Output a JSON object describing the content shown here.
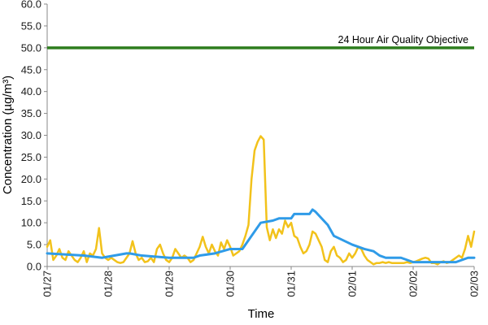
{
  "chart_data": {
    "type": "line",
    "title": "",
    "xlabel": "Time",
    "ylabel": "Concentration (µg/m³)",
    "ylim": [
      0,
      60
    ],
    "xlim": [
      0,
      7
    ],
    "grid": false,
    "y_ticks": [
      "0.0",
      "5.0",
      "10.0",
      "15.0",
      "20.0",
      "25.0",
      "30.0",
      "35.0",
      "40.0",
      "45.0",
      "50.0",
      "55.0",
      "60.0"
    ],
    "x_ticks": [
      {
        "x": 0,
        "label": "01/27"
      },
      {
        "x": 1,
        "label": "01/28"
      },
      {
        "x": 2,
        "label": "01/29"
      },
      {
        "x": 3,
        "label": "01/30"
      },
      {
        "x": 4,
        "label": "01/31"
      },
      {
        "x": 5,
        "label": "02/01"
      },
      {
        "x": 6,
        "label": "02/02"
      },
      {
        "x": 7,
        "label": "02/03"
      }
    ],
    "reference_lines": [
      {
        "y": 50.0,
        "label": "24 Hour Air Quality Objective",
        "color": "#2e7d1e"
      }
    ],
    "series": [
      {
        "color": "#f2c21b",
        "style": "hourly",
        "x": [
          0,
          0.05,
          0.1,
          0.15,
          0.2,
          0.25,
          0.3,
          0.35,
          0.4,
          0.45,
          0.5,
          0.55,
          0.6,
          0.65,
          0.7,
          0.75,
          0.8,
          0.85,
          0.9,
          0.95,
          1.0,
          1.05,
          1.1,
          1.15,
          1.2,
          1.25,
          1.3,
          1.35,
          1.4,
          1.45,
          1.5,
          1.55,
          1.6,
          1.65,
          1.7,
          1.75,
          1.8,
          1.85,
          1.9,
          1.95,
          2.0,
          2.05,
          2.1,
          2.15,
          2.2,
          2.25,
          2.3,
          2.35,
          2.4,
          2.45,
          2.5,
          2.55,
          2.6,
          2.65,
          2.7,
          2.75,
          2.8,
          2.85,
          2.9,
          2.95,
          3.0,
          3.05,
          3.1,
          3.15,
          3.2,
          3.25,
          3.3,
          3.35,
          3.4,
          3.45,
          3.5,
          3.55,
          3.6,
          3.65,
          3.7,
          3.75,
          3.8,
          3.85,
          3.9,
          3.95,
          4.0,
          4.05,
          4.1,
          4.15,
          4.2,
          4.25,
          4.3,
          4.35,
          4.4,
          4.45,
          4.5,
          4.55,
          4.6,
          4.65,
          4.7,
          4.75,
          4.8,
          4.85,
          4.9,
          4.95,
          5.0,
          5.05,
          5.1,
          5.15,
          5.2,
          5.25,
          5.3,
          5.35,
          5.4,
          5.45,
          5.5,
          5.55,
          5.6,
          5.65,
          5.7,
          5.75,
          5.8,
          5.85,
          5.9,
          5.95,
          6.0,
          6.05,
          6.1,
          6.15,
          6.2,
          6.25,
          6.3,
          6.35,
          6.4,
          6.45,
          6.5,
          6.55,
          6.6,
          6.65,
          6.7,
          6.75,
          6.8,
          6.85,
          6.9,
          6.95,
          7.0
        ],
        "y": [
          4.5,
          6.0,
          1.5,
          2.5,
          4.0,
          2.0,
          1.5,
          3.5,
          2.5,
          1.5,
          1.0,
          2.0,
          3.5,
          1.0,
          3.0,
          2.5,
          4.0,
          8.8,
          3.0,
          2.0,
          1.5,
          2.0,
          1.5,
          1.0,
          0.8,
          1.0,
          2.0,
          3.0,
          5.8,
          3.0,
          1.5,
          2.0,
          1.0,
          1.2,
          2.0,
          1.0,
          4.0,
          5.0,
          3.0,
          1.5,
          1.0,
          2.0,
          4.0,
          3.0,
          2.0,
          2.5,
          2.0,
          1.0,
          1.5,
          3.0,
          4.5,
          6.8,
          4.5,
          3.0,
          5.0,
          3.5,
          2.5,
          5.5,
          4.0,
          6.0,
          4.5,
          2.5,
          3.0,
          3.5,
          5.0,
          7.0,
          9.5,
          20.0,
          26.5,
          28.5,
          29.8,
          29.0,
          9.0,
          6.0,
          8.5,
          6.5,
          8.5,
          7.5,
          10.5,
          9.0,
          10.0,
          7.0,
          6.5,
          4.5,
          3.0,
          3.5,
          5.0,
          8.0,
          7.5,
          6.0,
          4.5,
          1.5,
          1.0,
          3.5,
          4.5,
          2.5,
          2.0,
          1.0,
          1.5,
          3.0,
          2.0,
          3.0,
          4.5,
          4.0,
          2.5,
          1.5,
          1.0,
          0.5,
          0.8,
          0.8,
          1.0,
          0.8,
          1.0,
          0.8,
          0.8,
          0.8,
          0.8,
          0.8,
          1.0,
          0.8,
          1.0,
          1.2,
          1.5,
          1.8,
          2.0,
          1.8,
          0.8,
          0.8,
          0.5,
          1.0,
          1.2,
          0.8,
          1.0,
          1.5,
          2.0,
          2.5,
          2.0,
          4.0,
          7.0,
          4.5,
          8.0
        ],
        "name": ""
      },
      {
        "color": "#2f9be8",
        "style": "24h rolling",
        "x": [
          0,
          0.6,
          0.9,
          1.3,
          1.35,
          1.55,
          2.0,
          2.4,
          2.5,
          2.75,
          3.0,
          3.2,
          3.5,
          3.7,
          3.8,
          4.0,
          4.05,
          4.3,
          4.35,
          4.4,
          4.6,
          4.7,
          4.85,
          5.0,
          5.2,
          5.35,
          5.45,
          5.55,
          5.8,
          6.0,
          6.5,
          6.7,
          6.9,
          7.0
        ],
        "y": [
          3.0,
          2.5,
          2.0,
          3.0,
          3.0,
          2.5,
          2.0,
          2.0,
          2.5,
          3.0,
          4.0,
          4.0,
          10.0,
          10.5,
          11.0,
          11.0,
          12.0,
          12.0,
          13.0,
          12.5,
          9.5,
          7.0,
          6.0,
          5.0,
          4.0,
          3.5,
          2.5,
          2.0,
          2.0,
          1.0,
          1.0,
          1.0,
          2.0,
          2.0
        ],
        "name": ""
      }
    ]
  }
}
